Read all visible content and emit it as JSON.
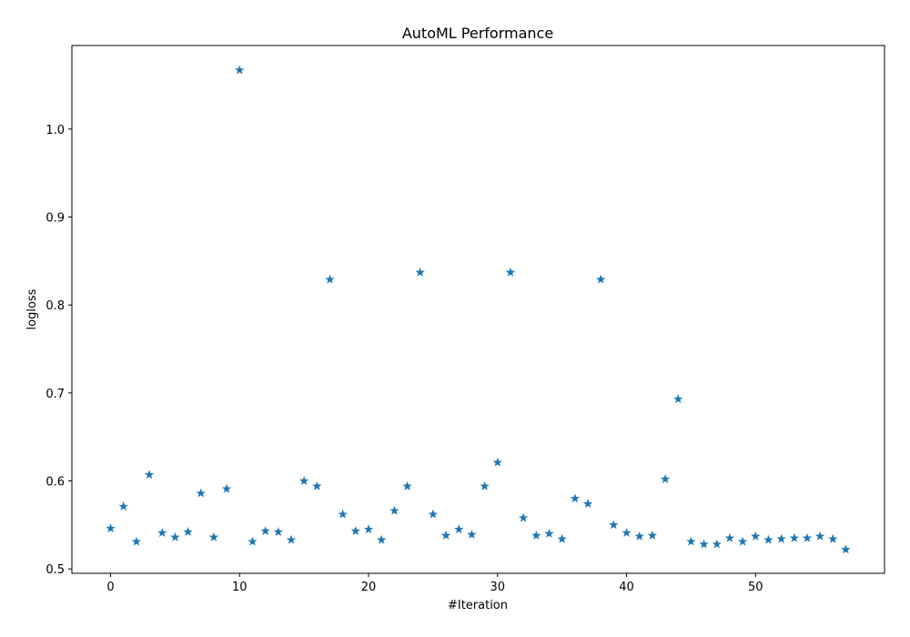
{
  "chart_data": {
    "type": "scatter",
    "title": "AutoML Performance",
    "xlabel": "#Iteration",
    "ylabel": "logloss",
    "xlim": [
      -3,
      60
    ],
    "ylim": [
      0.495,
      1.095
    ],
    "xticks": [
      0,
      10,
      20,
      30,
      40,
      50
    ],
    "yticks": [
      0.5,
      0.6,
      0.7,
      0.8,
      0.9,
      1.0
    ],
    "ytick_labels": [
      "0.5",
      "0.6",
      "0.7",
      "0.8",
      "0.9",
      "1.0"
    ],
    "marker": "star",
    "color": "#1f77b4",
    "grid": false,
    "x": [
      0,
      1,
      2,
      3,
      4,
      5,
      6,
      7,
      8,
      9,
      10,
      11,
      12,
      13,
      14,
      15,
      16,
      17,
      18,
      19,
      20,
      21,
      22,
      23,
      24,
      25,
      26,
      27,
      28,
      29,
      30,
      31,
      32,
      33,
      34,
      35,
      36,
      37,
      38,
      39,
      40,
      41,
      42,
      43,
      44,
      45,
      46,
      47,
      48,
      49,
      50,
      51,
      52,
      53,
      54,
      55,
      56,
      57
    ],
    "y": [
      0.546,
      0.571,
      0.531,
      0.607,
      0.541,
      0.536,
      0.542,
      0.586,
      0.536,
      0.591,
      1.067,
      0.531,
      0.543,
      0.542,
      0.533,
      0.6,
      0.594,
      0.829,
      0.562,
      0.543,
      0.545,
      0.533,
      0.566,
      0.594,
      0.837,
      0.562,
      0.538,
      0.545,
      0.539,
      0.594,
      0.621,
      0.837,
      0.558,
      0.538,
      0.54,
      0.534,
      0.58,
      0.574,
      0.829,
      0.55,
      0.541,
      0.537,
      0.538,
      0.602,
      0.693,
      0.531,
      0.528,
      0.528,
      0.535,
      0.531,
      0.537,
      0.533,
      0.534,
      0.535,
      0.535,
      0.537,
      0.534,
      0.522
    ]
  }
}
